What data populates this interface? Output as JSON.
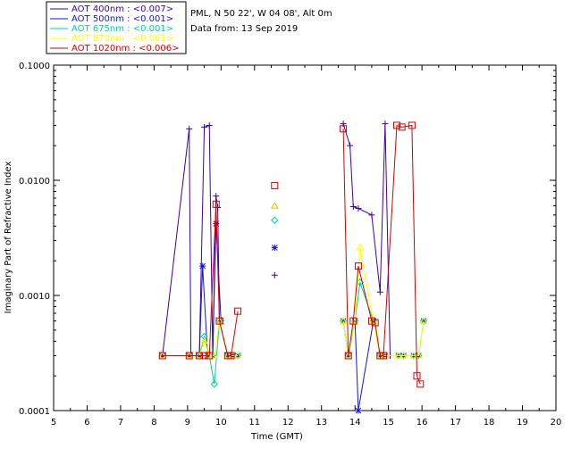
{
  "header": {
    "site_line": "PML, N 50 22', W 04 08', Alt 0m",
    "date_line": "Data from: 13 Sep 2019"
  },
  "chart_data": {
    "type": "line",
    "xlabel": "Time (GMT)",
    "ylabel": "Imaginary Part of Refractive Index",
    "xlim": [
      5,
      20
    ],
    "ylim": [
      0.0001,
      0.1
    ],
    "yscale": "log",
    "xticks": [
      "5",
      "6",
      "7",
      "8",
      "9",
      "10",
      "11",
      "12",
      "13",
      "14",
      "15",
      "16",
      "17",
      "18",
      "19",
      "20"
    ],
    "yticks": [
      {
        "value": 0.0001,
        "label": "0.0001"
      },
      {
        "value": 0.001,
        "label": "0.0010"
      },
      {
        "value": 0.01,
        "label": "0.0100"
      },
      {
        "value": 0.1,
        "label": "0.1000"
      }
    ],
    "legend_position": "top-left (outside plot)",
    "series": [
      {
        "name": "AOT  400nm : <0.007>",
        "color": "#3a00a8",
        "marker": "plus",
        "points": [
          [
            8.25,
            0.0003
          ],
          [
            9.05,
            0.028
          ],
          [
            9.1,
            0.0003
          ],
          [
            9.35,
            0.0003
          ],
          [
            9.5,
            0.029
          ],
          [
            9.65,
            0.03
          ],
          [
            9.75,
            0.0003
          ],
          [
            9.85,
            0.0073
          ],
          [
            9.9,
            0.0058
          ],
          [
            9.95,
            0.0006
          ],
          [
            10.2,
            0.0003
          ],
          [
            10.3,
            0.0003
          ],
          [
            13.65,
            0.031
          ],
          [
            13.85,
            0.02
          ],
          [
            13.95,
            0.0059
          ],
          [
            14.1,
            0.0057
          ],
          [
            14.5,
            0.005
          ],
          [
            14.75,
            0.00107
          ],
          [
            14.9,
            0.031
          ],
          [
            15.05,
            0.0003
          ],
          [
            15.3,
            0.0003
          ],
          [
            15.45,
            0.0003
          ],
          [
            15.75,
            0.0003
          ],
          [
            15.85,
            0.0003
          ],
          [
            16.05,
            0.0006
          ]
        ],
        "segments": [
          [
            0,
            4
          ],
          [
            4,
            5
          ],
          [
            5,
            7
          ],
          [
            7,
            10
          ],
          [
            12,
            19
          ]
        ]
      },
      {
        "name": "AOT  500nm : <0.001>",
        "color": "#1414e0",
        "marker": "asterisk",
        "points": [
          [
            8.25,
            0.0003
          ],
          [
            9.05,
            0.0003
          ],
          [
            9.35,
            0.0003
          ],
          [
            9.45,
            0.0018
          ],
          [
            9.6,
            0.0003
          ],
          [
            9.75,
            0.0003
          ],
          [
            9.85,
            0.0042
          ],
          [
            10.0,
            0.0006
          ],
          [
            10.2,
            0.0003
          ],
          [
            10.35,
            0.0003
          ],
          [
            10.5,
            0.0003
          ],
          [
            13.65,
            0.0006
          ],
          [
            13.8,
            0.0003
          ],
          [
            14.0,
            0.0006
          ],
          [
            14.1,
            0.0001
          ],
          [
            14.55,
            0.0006
          ],
          [
            14.75,
            0.0003
          ],
          [
            14.9,
            0.0003
          ],
          [
            15.3,
            0.0003
          ],
          [
            15.45,
            0.0003
          ],
          [
            15.75,
            0.0003
          ],
          [
            15.9,
            0.0003
          ],
          [
            16.05,
            0.0006
          ]
        ],
        "segments": [
          [
            0,
            7
          ],
          [
            11,
            15
          ]
        ]
      },
      {
        "name": "AOT  675nm : <0.001>",
        "color": "#00d0a0",
        "marker": "diamond",
        "points": [
          [
            8.25,
            0.0003
          ],
          [
            9.05,
            0.0003
          ],
          [
            9.35,
            0.0003
          ],
          [
            9.5,
            0.00044
          ],
          [
            9.65,
            0.0003
          ],
          [
            9.8,
            0.00017
          ],
          [
            9.95,
            0.0006
          ],
          [
            10.2,
            0.0003
          ],
          [
            10.35,
            0.0003
          ],
          [
            10.5,
            0.0003
          ],
          [
            13.65,
            0.0006
          ],
          [
            13.8,
            0.0003
          ],
          [
            14.0,
            0.0006
          ],
          [
            14.15,
            0.0013
          ],
          [
            14.55,
            0.0006
          ],
          [
            14.75,
            0.0003
          ],
          [
            14.9,
            0.0003
          ],
          [
            15.3,
            0.0003
          ],
          [
            15.45,
            0.0003
          ],
          [
            15.75,
            0.0003
          ],
          [
            15.9,
            0.0003
          ],
          [
            16.05,
            0.0006
          ]
        ],
        "segments": [
          [
            0,
            9
          ],
          [
            10,
            21
          ]
        ]
      },
      {
        "name": "AOT  870nm : <0.001>",
        "color": "#ffff00",
        "marker": "triangle",
        "points": [
          [
            8.25,
            0.0003
          ],
          [
            9.05,
            0.0003
          ],
          [
            9.35,
            0.0003
          ],
          [
            9.5,
            0.0004
          ],
          [
            9.65,
            0.0003
          ],
          [
            9.8,
            0.0003
          ],
          [
            9.95,
            0.0006
          ],
          [
            10.2,
            0.0003
          ],
          [
            10.35,
            0.0003
          ],
          [
            10.5,
            0.0003
          ],
          [
            13.65,
            0.0006
          ],
          [
            13.8,
            0.0003
          ],
          [
            14.0,
            0.0006
          ],
          [
            14.15,
            0.0026
          ],
          [
            14.55,
            0.0006
          ],
          [
            14.75,
            0.0003
          ],
          [
            14.9,
            0.0003
          ],
          [
            15.3,
            0.0003
          ],
          [
            15.45,
            0.0003
          ],
          [
            15.75,
            0.0003
          ],
          [
            15.9,
            0.0003
          ],
          [
            16.05,
            0.0006
          ]
        ],
        "segments": [
          [
            0,
            9
          ],
          [
            10,
            21
          ]
        ]
      },
      {
        "name": "AOT 1020nm : <0.006>",
        "color": "#d80000",
        "marker": "square",
        "points": [
          [
            8.25,
            0.0003
          ],
          [
            9.05,
            0.0003
          ],
          [
            9.35,
            0.0003
          ],
          [
            9.5,
            0.0003
          ],
          [
            9.65,
            0.0003
          ],
          [
            9.85,
            0.0062
          ],
          [
            9.95,
            0.0006
          ],
          [
            10.2,
            0.0003
          ],
          [
            10.3,
            0.0003
          ],
          [
            10.5,
            0.00073
          ],
          [
            13.65,
            0.028
          ],
          [
            13.8,
            0.0003
          ],
          [
            13.95,
            0.0006
          ],
          [
            14.1,
            0.0018
          ],
          [
            14.5,
            0.0006
          ],
          [
            14.6,
            0.00058
          ],
          [
            14.75,
            0.0003
          ],
          [
            14.85,
            0.0003
          ],
          [
            15.25,
            0.03
          ],
          [
            15.4,
            0.029
          ],
          [
            15.7,
            0.03
          ],
          [
            15.85,
            0.0002
          ],
          [
            15.95,
            0.00017
          ]
        ],
        "segments": [
          [
            0,
            9
          ],
          [
            10,
            22
          ]
        ]
      }
    ],
    "legend_markers": [
      {
        "marker": "square",
        "color": "#d80000",
        "x": 11.6,
        "y": 0.009
      },
      {
        "marker": "triangle",
        "color": "#cccc00",
        "x": 11.6,
        "y": 0.006
      },
      {
        "marker": "diamond",
        "color": "#00d0a0",
        "x": 11.6,
        "y": 0.0045
      },
      {
        "marker": "asterisk",
        "color": "#1414e0",
        "x": 11.6,
        "y": 0.0026
      },
      {
        "marker": "plus",
        "color": "#3a00a8",
        "x": 11.6,
        "y": 0.0015
      }
    ]
  }
}
